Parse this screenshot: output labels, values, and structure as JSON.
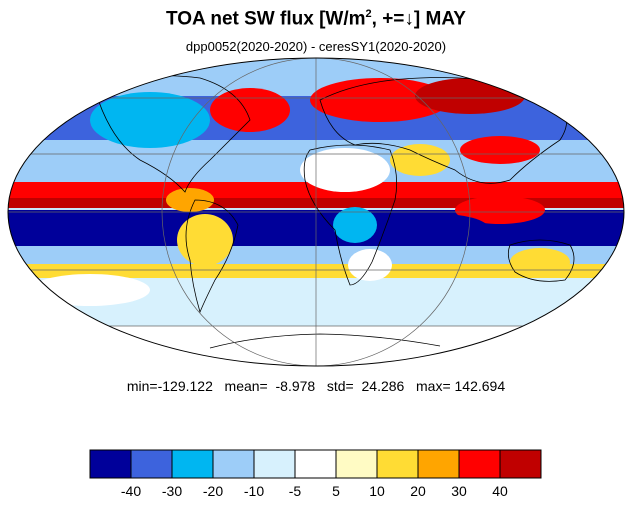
{
  "title": {
    "main": "TOA net SW flux [W/m",
    "superscript": "2",
    "suffix": ", +=↓]  MAY"
  },
  "subtitle": "dpp0052(2020-2020) - ceresSY1(2020-2020)",
  "stats": {
    "text": "min=-129.122   mean=  -8.978   std=  24.286   max= 142.694",
    "min": -129.122,
    "mean": -8.978,
    "std": 24.286,
    "max": 142.694
  },
  "map": {
    "projection": "mollweide",
    "field": "difference",
    "land_outlines": true,
    "gridlines": true
  },
  "colorbar": {
    "levels": [
      "-40",
      "-30",
      "-20",
      "-10",
      "-5",
      "5",
      "10",
      "20",
      "30",
      "40"
    ],
    "colors": [
      "#00009a",
      "#3d63dd",
      "#00b6f1",
      "#9dcdf8",
      "#d7f1fd",
      "#ffffff",
      "#fffbc4",
      "#ffdc34",
      "#ffa500",
      "#ff0000",
      "#c00000"
    ]
  }
}
